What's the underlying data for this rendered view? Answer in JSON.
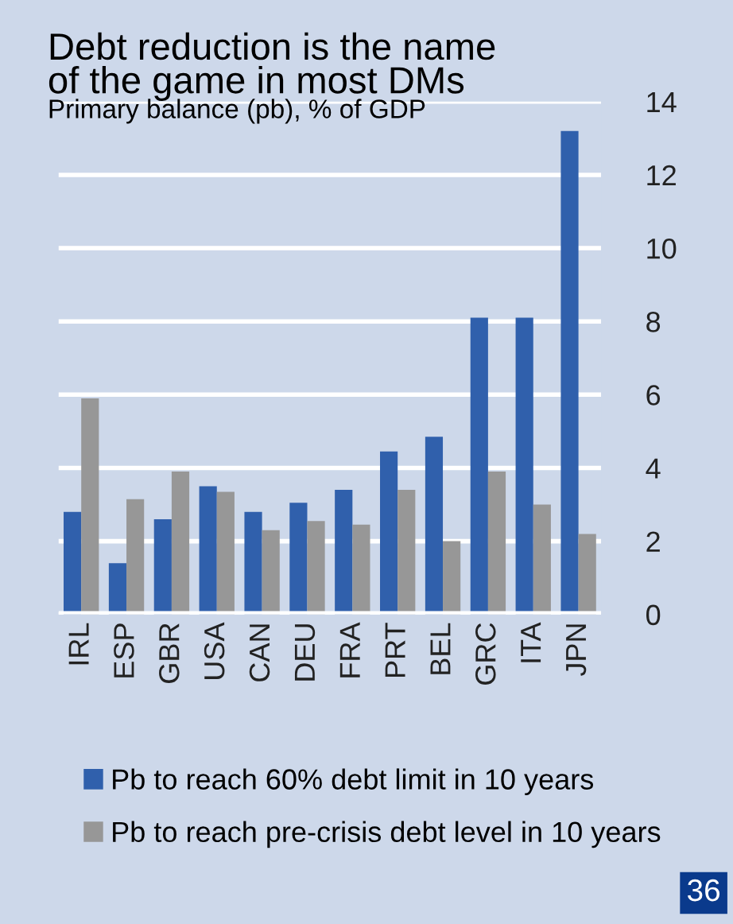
{
  "chart_data": {
    "type": "bar",
    "title": "Debt reduction is the name\nof the game in most DMs",
    "subtitle": "Primary balance (pb), % of GDP",
    "categories": [
      "IRL",
      "ESP",
      "GBR",
      "USA",
      "CAN",
      "DEU",
      "FRA",
      "PRT",
      "BEL",
      "GRC",
      "ITA",
      "JPN"
    ],
    "series": [
      {
        "name": "Pb to reach 60% debt limit in 10 years",
        "color": "#3060ac",
        "values": [
          2.8,
          1.4,
          2.6,
          3.5,
          2.8,
          3.05,
          3.4,
          4.45,
          4.85,
          8.1,
          8.1,
          13.2
        ]
      },
      {
        "name": "Pb to reach pre-crisis debt level in 10 years",
        "color": "#979797",
        "values": [
          5.9,
          3.15,
          3.9,
          3.35,
          2.3,
          2.55,
          2.45,
          3.4,
          2.0,
          3.9,
          3.0,
          2.2
        ]
      }
    ],
    "ylim": [
      0,
      14
    ],
    "yticks": [
      0,
      2,
      4,
      6,
      8,
      10,
      12,
      14
    ],
    "grid": "y",
    "legend": "bottom",
    "annotations": [
      "36"
    ]
  }
}
